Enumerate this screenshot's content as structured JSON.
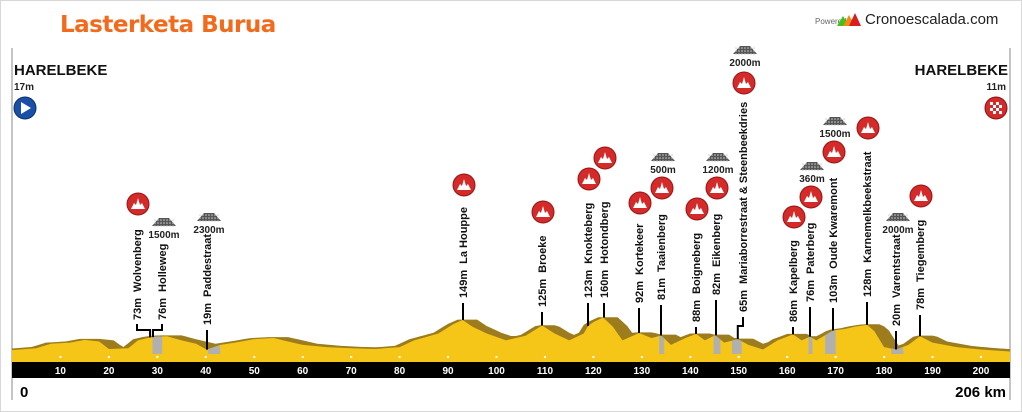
{
  "header": {
    "title": "Lasterketa Burua",
    "powered_by": "Powered by",
    "brand": "Cronoescalada.com"
  },
  "start": {
    "town": "HARELBEKE",
    "elevation": "17m",
    "icon": "play-start-icon"
  },
  "finish": {
    "town": "HARELBEKE",
    "elevation": "11m",
    "icon": "checkered-finish-icon"
  },
  "axis": {
    "start_label": "0",
    "end_label": "206 km"
  },
  "colors": {
    "profile_fill": "#f5c518",
    "profile_shadow": "#9c7c1c",
    "cobbles": "#b0b0b0",
    "climb_icon": "#d42a2a",
    "title": "#f26a1b",
    "axis_bar": "#000000"
  },
  "chart_data": {
    "type": "area",
    "title": "Lasterketa Burua",
    "xlabel": "km",
    "ylabel": "",
    "xlim": [
      0,
      206
    ],
    "x_ticks": [
      10,
      20,
      30,
      40,
      50,
      60,
      70,
      80,
      90,
      100,
      110,
      120,
      130,
      140,
      150,
      160,
      170,
      180,
      190,
      200
    ],
    "profile": [
      [
        0,
        17
      ],
      [
        5,
        25
      ],
      [
        8,
        45
      ],
      [
        12,
        50
      ],
      [
        15,
        62
      ],
      [
        18,
        55
      ],
      [
        20,
        22
      ],
      [
        24,
        25
      ],
      [
        26,
        60
      ],
      [
        28.5,
        73
      ],
      [
        30,
        76
      ],
      [
        32,
        78
      ],
      [
        35,
        60
      ],
      [
        38,
        45
      ],
      [
        40.2,
        19
      ],
      [
        43,
        40
      ],
      [
        46,
        50
      ],
      [
        50,
        65
      ],
      [
        54,
        70
      ],
      [
        56,
        60
      ],
      [
        60,
        40
      ],
      [
        65,
        30
      ],
      [
        70,
        25
      ],
      [
        75,
        22
      ],
      [
        80,
        30
      ],
      [
        83,
        60
      ],
      [
        88,
        90
      ],
      [
        91,
        130
      ],
      [
        93,
        149
      ],
      [
        95,
        120
      ],
      [
        98,
        90
      ],
      [
        102,
        60
      ],
      [
        106,
        80
      ],
      [
        109.4,
        125
      ],
      [
        112,
        90
      ],
      [
        115,
        60
      ],
      [
        118,
        90
      ],
      [
        118.9,
        123
      ],
      [
        120,
        140
      ],
      [
        122,
        160
      ],
      [
        124,
        120
      ],
      [
        126,
        60
      ],
      [
        129.4,
        92
      ],
      [
        132,
        70
      ],
      [
        134,
        81
      ],
      [
        136,
        40
      ],
      [
        139,
        70
      ],
      [
        141.2,
        88
      ],
      [
        143,
        60
      ],
      [
        145.1,
        82
      ],
      [
        147,
        50
      ],
      [
        149.8,
        65
      ],
      [
        152,
        40
      ],
      [
        155,
        20
      ],
      [
        158,
        60
      ],
      [
        161.2,
        86
      ],
      [
        163,
        60
      ],
      [
        164.7,
        76
      ],
      [
        166,
        60
      ],
      [
        169.5,
        103
      ],
      [
        172,
        110
      ],
      [
        174,
        120
      ],
      [
        176.5,
        128
      ],
      [
        178,
        100
      ],
      [
        180,
        30
      ],
      [
        182.5,
        20
      ],
      [
        185,
        40
      ],
      [
        187.4,
        78
      ],
      [
        190,
        50
      ],
      [
        195,
        30
      ],
      [
        200,
        20
      ],
      [
        206,
        11
      ]
    ],
    "climbs": [
      {
        "name": "Wolvenberg",
        "elevation": "73m",
        "km": 28.5,
        "climb_icon": true,
        "cobbles": ""
      },
      {
        "name": "Holleweg",
        "elevation": "76m",
        "km": 29.1,
        "climb_icon": false,
        "cobbles": "1500m"
      },
      {
        "name": "Paddestraat",
        "elevation": "19m",
        "km": 40.2,
        "climb_icon": false,
        "cobbles": "2300m"
      },
      {
        "name": "La Houppe",
        "elevation": "149m",
        "km": 93,
        "climb_icon": true,
        "cobbles": ""
      },
      {
        "name": "Broeke",
        "elevation": "125m",
        "km": 109.4,
        "climb_icon": true,
        "cobbles": ""
      },
      {
        "name": "Knokteberg",
        "elevation": "123m",
        "km": 118.9,
        "climb_icon": true,
        "cobbles": ""
      },
      {
        "name": "Hotondberg",
        "elevation": "160m",
        "km": 122,
        "climb_icon": true,
        "cobbles": ""
      },
      {
        "name": "Kortekeer",
        "elevation": "92m",
        "km": 129.4,
        "climb_icon": true,
        "cobbles": ""
      },
      {
        "name": "Taaienberg",
        "elevation": "81m",
        "km": 134,
        "climb_icon": true,
        "cobbles": "500m"
      },
      {
        "name": "Boigneberg",
        "elevation": "88m",
        "km": 141.2,
        "climb_icon": true,
        "cobbles": ""
      },
      {
        "name": "Eikenberg",
        "elevation": "82m",
        "km": 145.1,
        "climb_icon": true,
        "cobbles": "1200m"
      },
      {
        "name": "Mariaborrestraat & Steenbeekdries",
        "elevation": "65m",
        "km": 149.8,
        "climb_icon": true,
        "cobbles": "2000m"
      },
      {
        "name": "Kapelberg",
        "elevation": "86m",
        "km": 161.2,
        "climb_icon": true,
        "cobbles": ""
      },
      {
        "name": "Paterberg",
        "elevation": "76m",
        "km": 164.7,
        "climb_icon": true,
        "cobbles": "360m"
      },
      {
        "name": "Oude Kwaremont",
        "elevation": "103m",
        "km": 169.5,
        "climb_icon": true,
        "cobbles": "1500m"
      },
      {
        "name": "Karnemelkbeekstraat",
        "elevation": "128m",
        "km": 176.5,
        "climb_icon": true,
        "cobbles": ""
      },
      {
        "name": "Varentstraat",
        "elevation": "20m",
        "km": 182.5,
        "climb_icon": false,
        "cobbles": "2000m"
      },
      {
        "name": "Tiegemberg",
        "elevation": "78m",
        "km": 187.4,
        "climb_icon": true,
        "cobbles": ""
      }
    ],
    "cobble_sections": [
      [
        29,
        31
      ],
      [
        40.5,
        43
      ],
      [
        133.6,
        134.6
      ],
      [
        144.8,
        146.2
      ],
      [
        148.6,
        150.6
      ],
      [
        164.4,
        165.2
      ],
      [
        167.8,
        170
      ],
      [
        181.5,
        184
      ]
    ]
  }
}
